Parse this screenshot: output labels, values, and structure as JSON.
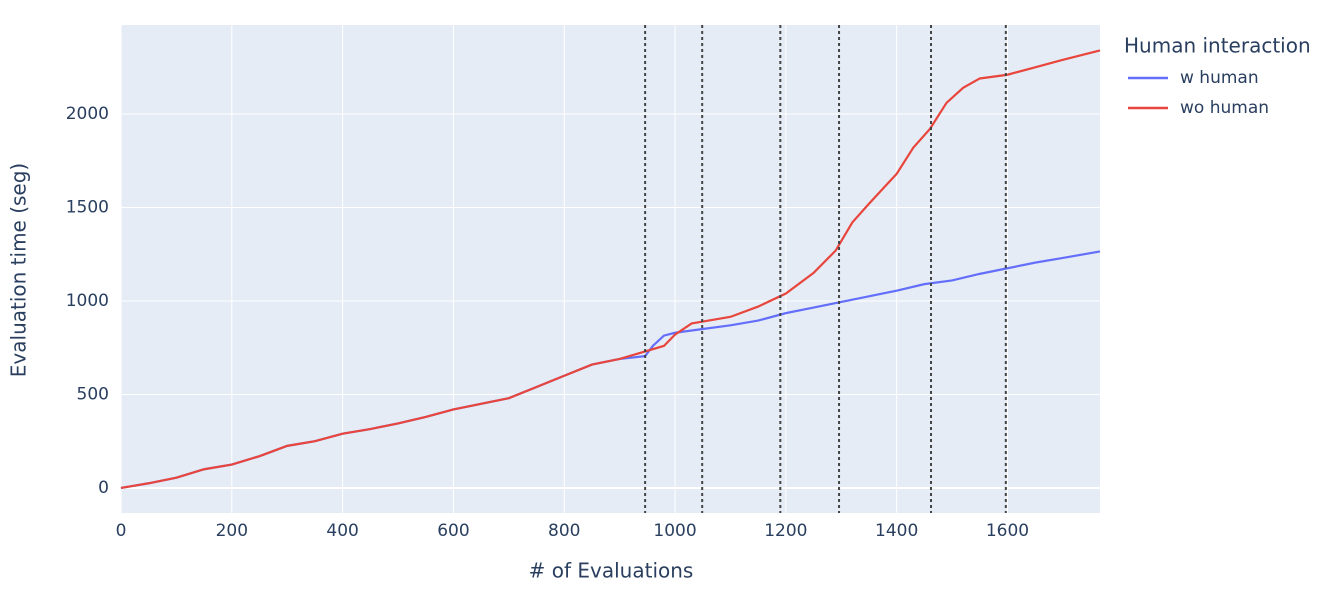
{
  "chart_data": {
    "type": "line",
    "xlabel": "# of Evaluations",
    "ylabel": "Evaluation time (seg)",
    "legend_title": "Human interaction",
    "legend": "right",
    "grid": true,
    "xlim": [
      0,
      1767
    ],
    "xticks": [
      0,
      200,
      400,
      600,
      800,
      1000,
      1200,
      1400,
      1600
    ],
    "ylim": [
      -134,
      2476
    ],
    "yticks": [
      0,
      500,
      1000,
      1500,
      2000
    ],
    "vlines": [
      946,
      1049,
      1190,
      1296,
      1462,
      1597
    ],
    "series": [
      {
        "name": "w human",
        "color": "#636efa",
        "x": [
          0,
          50,
          100,
          150,
          200,
          250,
          300,
          350,
          400,
          450,
          500,
          550,
          600,
          650,
          700,
          750,
          800,
          850,
          900,
          946,
          960,
          980,
          1000,
          1050,
          1100,
          1150,
          1200,
          1250,
          1300,
          1350,
          1400,
          1450,
          1500,
          1550,
          1600,
          1650,
          1700,
          1767
        ],
        "values": [
          0,
          25,
          55,
          100,
          125,
          170,
          225,
          250,
          290,
          315,
          345,
          380,
          420,
          450,
          480,
          540,
          600,
          660,
          690,
          705,
          760,
          815,
          830,
          850,
          870,
          895,
          935,
          965,
          995,
          1025,
          1055,
          1090,
          1110,
          1145,
          1175,
          1205,
          1230,
          1265
        ]
      },
      {
        "name": "wo human",
        "color": "#e8463c",
        "x": [
          0,
          50,
          100,
          150,
          200,
          250,
          300,
          350,
          400,
          450,
          500,
          550,
          600,
          650,
          700,
          750,
          800,
          850,
          900,
          946,
          980,
          1000,
          1030,
          1050,
          1100,
          1150,
          1200,
          1250,
          1290,
          1320,
          1350,
          1400,
          1430,
          1460,
          1490,
          1520,
          1550,
          1600,
          1650,
          1700,
          1767
        ],
        "values": [
          0,
          25,
          55,
          100,
          125,
          170,
          225,
          250,
          290,
          315,
          345,
          380,
          420,
          450,
          480,
          540,
          600,
          660,
          690,
          730,
          760,
          820,
          880,
          890,
          915,
          970,
          1040,
          1150,
          1270,
          1420,
          1520,
          1680,
          1820,
          1920,
          2060,
          2140,
          2190,
          2210,
          2250,
          2290,
          2340
        ]
      }
    ]
  }
}
